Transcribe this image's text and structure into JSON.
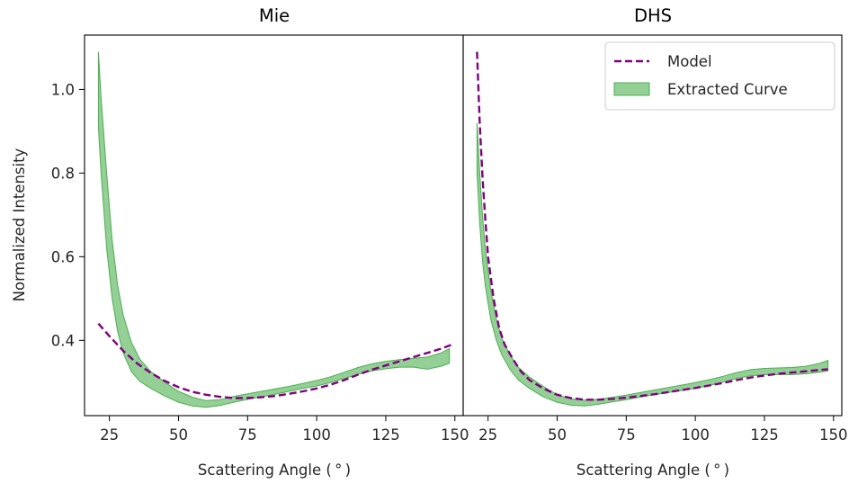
{
  "chart_data": [
    {
      "type": "line",
      "title": "Mie",
      "xlabel": "Scattering Angle ($^\\circ$)",
      "xlabel_display": "Scattering Angle ( ° )",
      "ylabel": "Normalized Intensity",
      "xlim": [
        16,
        153
      ],
      "ylim": [
        0.22,
        1.13
      ],
      "xticks": [
        25,
        50,
        75,
        100,
        125,
        150
      ],
      "yticks": [
        0.4,
        0.6,
        0.8,
        1.0
      ],
      "ytick_labels": [
        "0.4",
        "0.6",
        "0.8",
        "1.0"
      ],
      "series": [
        {
          "name": "Model",
          "style": "dashed",
          "color": "#800080",
          "x": [
            21,
            25,
            30,
            35,
            40,
            45,
            50,
            55,
            60,
            65,
            70,
            75,
            80,
            85,
            90,
            95,
            100,
            105,
            110,
            115,
            120,
            125,
            130,
            135,
            140,
            145,
            149
          ],
          "y": [
            0.44,
            0.41,
            0.375,
            0.345,
            0.322,
            0.303,
            0.288,
            0.277,
            0.27,
            0.265,
            0.262,
            0.262,
            0.264,
            0.267,
            0.272,
            0.278,
            0.285,
            0.294,
            0.305,
            0.318,
            0.33,
            0.34,
            0.35,
            0.36,
            0.37,
            0.38,
            0.39
          ]
        },
        {
          "name": "Extracted Curve",
          "style": "band",
          "color": "#4caf50",
          "x": [
            21,
            22,
            24,
            26,
            28,
            30,
            33,
            36,
            40,
            45,
            50,
            55,
            60,
            65,
            70,
            75,
            80,
            85,
            90,
            95,
            100,
            105,
            110,
            115,
            120,
            125,
            130,
            135,
            140,
            145,
            148
          ],
          "lower": [
            0.91,
            0.8,
            0.62,
            0.5,
            0.42,
            0.37,
            0.325,
            0.302,
            0.285,
            0.267,
            0.252,
            0.243,
            0.24,
            0.244,
            0.252,
            0.259,
            0.265,
            0.271,
            0.278,
            0.285,
            0.291,
            0.299,
            0.309,
            0.319,
            0.327,
            0.332,
            0.336,
            0.336,
            0.331,
            0.338,
            0.345
          ],
          "upper": [
            1.09,
            0.98,
            0.8,
            0.64,
            0.53,
            0.46,
            0.395,
            0.355,
            0.325,
            0.3,
            0.278,
            0.264,
            0.256,
            0.258,
            0.266,
            0.272,
            0.278,
            0.284,
            0.29,
            0.297,
            0.304,
            0.313,
            0.324,
            0.335,
            0.344,
            0.35,
            0.354,
            0.357,
            0.36,
            0.37,
            0.38
          ]
        }
      ]
    },
    {
      "type": "line",
      "title": "DHS",
      "xlabel": "Scattering Angle ($^\\circ$)",
      "xlabel_display": "Scattering Angle ( ° )",
      "xlim": [
        16,
        153
      ],
      "ylim": [
        0.22,
        1.13
      ],
      "xticks": [
        25,
        50,
        75,
        100,
        125,
        150
      ],
      "legend_position": "top-right",
      "series": [
        {
          "name": "Model",
          "style": "dashed",
          "color": "#800080",
          "x": [
            21,
            22,
            23,
            24,
            25,
            27,
            29,
            31,
            34,
            37,
            40,
            45,
            50,
            55,
            60,
            65,
            70,
            75,
            80,
            85,
            90,
            95,
            100,
            105,
            110,
            115,
            120,
            125,
            130,
            135,
            140,
            145,
            148
          ],
          "y": [
            1.09,
            0.92,
            0.79,
            0.69,
            0.6,
            0.5,
            0.43,
            0.39,
            0.355,
            0.325,
            0.305,
            0.285,
            0.27,
            0.262,
            0.258,
            0.258,
            0.26,
            0.263,
            0.267,
            0.271,
            0.276,
            0.281,
            0.286,
            0.292,
            0.298,
            0.305,
            0.311,
            0.316,
            0.32,
            0.323,
            0.326,
            0.329,
            0.331
          ]
        },
        {
          "name": "Extracted Curve",
          "style": "band",
          "color": "#4caf50",
          "x": [
            21,
            22,
            23,
            24,
            26,
            28,
            30,
            33,
            36,
            40,
            45,
            50,
            55,
            60,
            65,
            70,
            75,
            80,
            85,
            90,
            95,
            100,
            105,
            110,
            115,
            120,
            125,
            130,
            135,
            140,
            145,
            148
          ],
          "lower": [
            0.8,
            0.68,
            0.59,
            0.53,
            0.45,
            0.4,
            0.365,
            0.33,
            0.305,
            0.285,
            0.265,
            0.252,
            0.245,
            0.243,
            0.247,
            0.253,
            0.258,
            0.264,
            0.27,
            0.275,
            0.28,
            0.285,
            0.292,
            0.3,
            0.309,
            0.315,
            0.318,
            0.318,
            0.318,
            0.32,
            0.324,
            0.327
          ],
          "upper": [
            0.92,
            0.8,
            0.7,
            0.62,
            0.52,
            0.45,
            0.405,
            0.365,
            0.335,
            0.312,
            0.29,
            0.27,
            0.26,
            0.257,
            0.259,
            0.264,
            0.269,
            0.275,
            0.281,
            0.287,
            0.293,
            0.299,
            0.306,
            0.314,
            0.323,
            0.33,
            0.333,
            0.334,
            0.335,
            0.338,
            0.345,
            0.352
          ]
        }
      ]
    }
  ]
}
